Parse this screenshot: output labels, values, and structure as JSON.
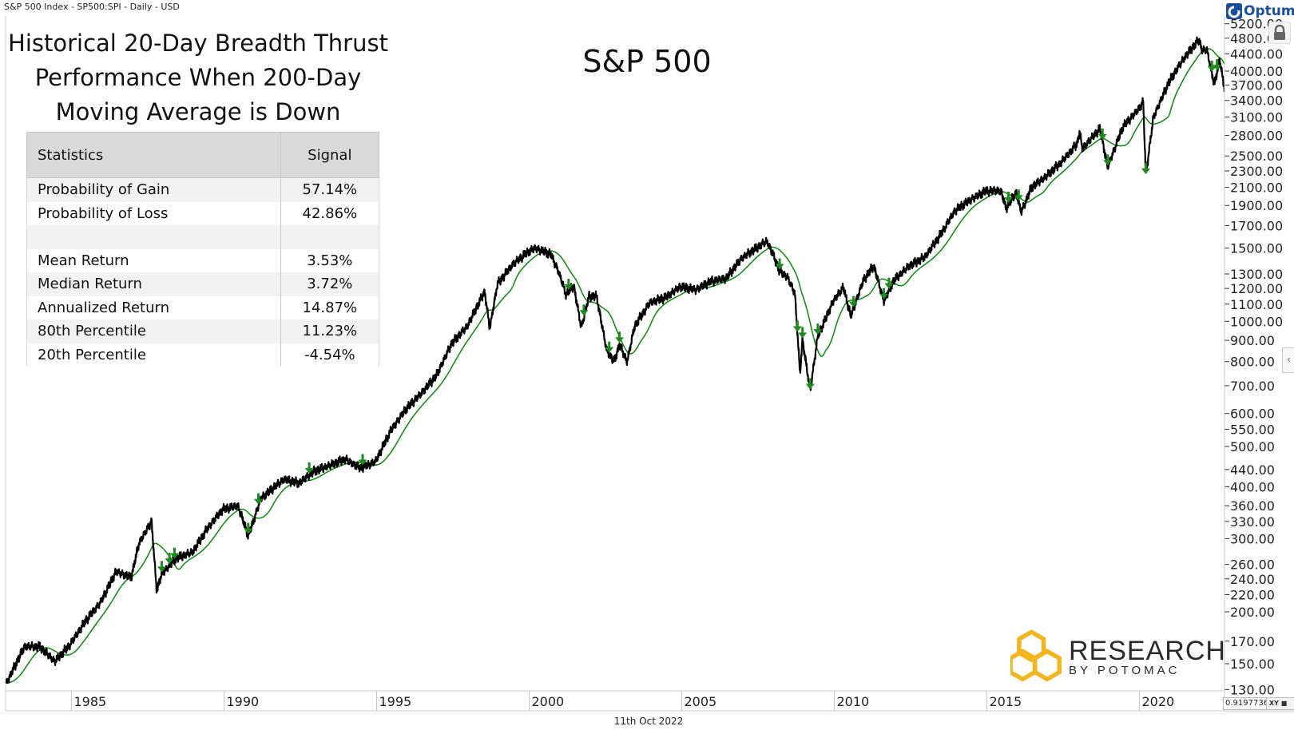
{
  "header": {
    "instrument": "S&P 500 Index  - SP500:SPI - Daily - USD"
  },
  "brand": {
    "optuma": "Optuma",
    "logo_main": "RESEARCH",
    "logo_sub": "BY POTOMAC",
    "logo_color": "#F2B51D"
  },
  "overlay": {
    "title_lines": [
      "Historical 20-Day Breadth Thrust",
      "Performance When 200-Day",
      "Moving Average is Down"
    ],
    "chart_label": "S&P 500"
  },
  "stats_table": {
    "headers": [
      "Statistics",
      "Signal"
    ],
    "rows": [
      {
        "label": "Probability of Gain",
        "value": "57.14%"
      },
      {
        "label": "Probability of Loss",
        "value": "42.86%"
      },
      {
        "label": "",
        "value": ""
      },
      {
        "label": "Mean Return",
        "value": "3.53%"
      },
      {
        "label": "Median Return",
        "value": "3.72%"
      },
      {
        "label": "Annualized Return",
        "value": "14.87%"
      },
      {
        "label": "80th Percentile",
        "value": "11.23%"
      },
      {
        "label": "20th Percentile",
        "value": "-4.54%"
      }
    ]
  },
  "footer": {
    "date": "11th Oct 2022",
    "readout": "0.9197736",
    "xy_label": "XY"
  },
  "chart_data": {
    "type": "line",
    "y_scale": "log",
    "x_range": [
      "1982-11",
      "2022-10"
    ],
    "ylim": [
      130,
      5400
    ],
    "x_ticks": [
      "1985",
      "1990",
      "1995",
      "2000",
      "2005",
      "2010",
      "2015",
      "2020"
    ],
    "y_ticks": [
      "5200.00",
      "4800.00",
      "4400.00",
      "4000.00",
      "3700.00",
      "3400.00",
      "3100.00",
      "2800.00",
      "2500.00",
      "2300.00",
      "2100.00",
      "1900.00",
      "1700.00",
      "1500.00",
      "1300.00",
      "1200.00",
      "1100.00",
      "1000.00",
      "900.00",
      "800.00",
      "700.00",
      "600.00",
      "550.00",
      "500.00",
      "440.00",
      "400.00",
      "360.00",
      "330.00",
      "300.00",
      "260.00",
      "240.00",
      "220.00",
      "200.00",
      "170.00",
      "150.00",
      "130.00"
    ],
    "colors": {
      "price": "#000000",
      "moving_average": "#0a8a0a",
      "signal": "#1e8a1e"
    },
    "price": [
      [
        "1982-11",
        135
      ],
      [
        "1983-06",
        165
      ],
      [
        "1983-12",
        165
      ],
      [
        "1984-06",
        152
      ],
      [
        "1984-12",
        167
      ],
      [
        "1985-06",
        190
      ],
      [
        "1985-12",
        211
      ],
      [
        "1986-06",
        250
      ],
      [
        "1986-12",
        242
      ],
      [
        "1987-03",
        292
      ],
      [
        "1987-08",
        330
      ],
      [
        "1987-10",
        225
      ],
      [
        "1987-12",
        247
      ],
      [
        "1988-06",
        270
      ],
      [
        "1988-12",
        278
      ],
      [
        "1989-06",
        318
      ],
      [
        "1989-12",
        353
      ],
      [
        "1990-06",
        360
      ],
      [
        "1990-10",
        305
      ],
      [
        "1990-12",
        330
      ],
      [
        "1991-03",
        375
      ],
      [
        "1991-12",
        417
      ],
      [
        "1992-06",
        408
      ],
      [
        "1992-12",
        436
      ],
      [
        "1993-06",
        450
      ],
      [
        "1993-12",
        466
      ],
      [
        "1994-06",
        444
      ],
      [
        "1994-12",
        459
      ],
      [
        "1995-06",
        545
      ],
      [
        "1995-12",
        615
      ],
      [
        "1996-06",
        670
      ],
      [
        "1996-12",
        740
      ],
      [
        "1997-06",
        885
      ],
      [
        "1997-12",
        970
      ],
      [
        "1998-07",
        1180
      ],
      [
        "1998-09",
        960
      ],
      [
        "1998-12",
        1229
      ],
      [
        "1999-06",
        1370
      ],
      [
        "1999-12",
        1469
      ],
      [
        "2000-03",
        1500
      ],
      [
        "2000-09",
        1450
      ],
      [
        "2000-12",
        1320
      ],
      [
        "2001-03",
        1160
      ],
      [
        "2001-06",
        1220
      ],
      [
        "2001-09",
        965
      ],
      [
        "2001-12",
        1148
      ],
      [
        "2002-03",
        1150
      ],
      [
        "2002-07",
        850
      ],
      [
        "2002-10",
        800
      ],
      [
        "2002-12",
        880
      ],
      [
        "2003-03",
        800
      ],
      [
        "2003-06",
        975
      ],
      [
        "2003-12",
        1110
      ],
      [
        "2004-06",
        1140
      ],
      [
        "2004-12",
        1212
      ],
      [
        "2005-06",
        1191
      ],
      [
        "2005-12",
        1248
      ],
      [
        "2006-06",
        1270
      ],
      [
        "2006-12",
        1418
      ],
      [
        "2007-06",
        1503
      ],
      [
        "2007-10",
        1560
      ],
      [
        "2007-12",
        1468
      ],
      [
        "2008-03",
        1320
      ],
      [
        "2008-06",
        1280
      ],
      [
        "2008-09",
        1165
      ],
      [
        "2008-11",
        750
      ],
      [
        "2008-12",
        903
      ],
      [
        "2009-03",
        680
      ],
      [
        "2009-06",
        920
      ],
      [
        "2009-12",
        1115
      ],
      [
        "2010-04",
        1210
      ],
      [
        "2010-07",
        1030
      ],
      [
        "2010-12",
        1257
      ],
      [
        "2011-04",
        1360
      ],
      [
        "2011-08",
        1120
      ],
      [
        "2011-12",
        1257
      ],
      [
        "2012-06",
        1360
      ],
      [
        "2012-12",
        1426
      ],
      [
        "2013-06",
        1606
      ],
      [
        "2013-12",
        1848
      ],
      [
        "2014-06",
        1960
      ],
      [
        "2014-12",
        2058
      ],
      [
        "2015-06",
        2063
      ],
      [
        "2015-08",
        1870
      ],
      [
        "2015-12",
        2043
      ],
      [
        "2016-02",
        1830
      ],
      [
        "2016-06",
        2098
      ],
      [
        "2016-12",
        2238
      ],
      [
        "2017-06",
        2423
      ],
      [
        "2017-12",
        2673
      ],
      [
        "2018-01",
        2870
      ],
      [
        "2018-02",
        2600
      ],
      [
        "2018-09",
        2913
      ],
      [
        "2018-12",
        2350
      ],
      [
        "2019-06",
        2940
      ],
      [
        "2019-12",
        3230
      ],
      [
        "2020-02",
        3380
      ],
      [
        "2020-03",
        2240
      ],
      [
        "2020-06",
        3100
      ],
      [
        "2020-12",
        3756
      ],
      [
        "2021-06",
        4297
      ],
      [
        "2021-12",
        4766
      ],
      [
        "2022-01",
        4500
      ],
      [
        "2022-03",
        4500
      ],
      [
        "2022-06",
        3700
      ],
      [
        "2022-08",
        4280
      ],
      [
        "2022-10",
        3600
      ]
    ],
    "moving_average_days": 200,
    "signals": [
      "1987-12",
      "1988-03",
      "1988-05",
      "1990-10",
      "1991-02",
      "1992-10",
      "1994-07",
      "2001-04",
      "2001-10",
      "2002-08",
      "2002-12",
      "2008-03",
      "2008-10",
      "2008-12",
      "2009-03",
      "2009-06",
      "2010-08",
      "2011-08",
      "2011-10",
      "2015-09",
      "2016-01",
      "2018-10",
      "2018-12",
      "2020-03",
      "2022-05",
      "2022-07"
    ]
  }
}
